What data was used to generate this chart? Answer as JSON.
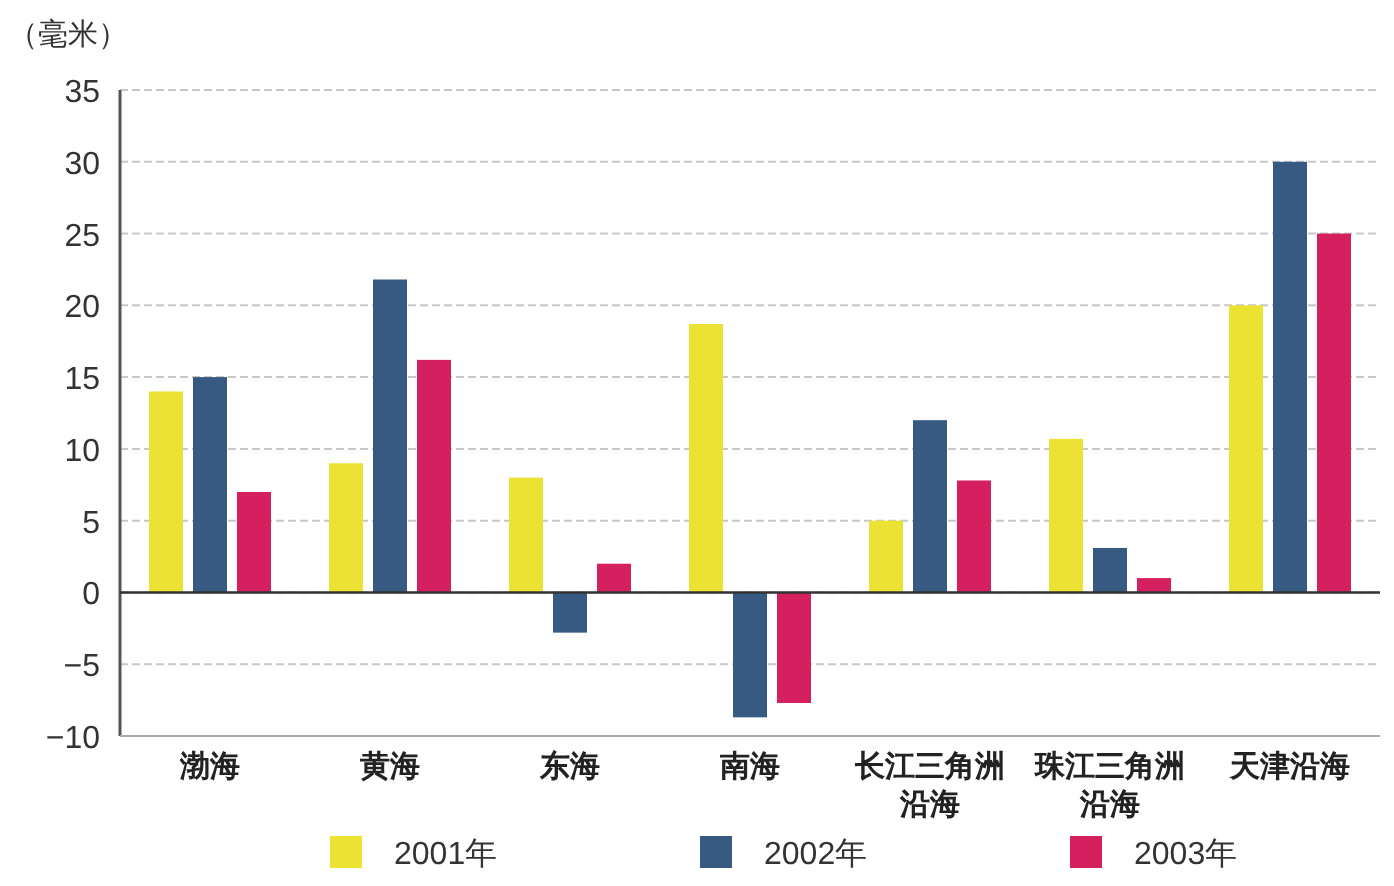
{
  "chart_data": {
    "type": "bar",
    "ylabel": "（毫米）",
    "categories": [
      "渤海",
      "黄海",
      "东海",
      "南海",
      "长江三角洲沿海",
      "珠江三角洲沿海",
      "天津沿海"
    ],
    "series": [
      {
        "name": "2001年",
        "color": "#ece234",
        "values": [
          14,
          9,
          8,
          18.7,
          5,
          10.7,
          20
        ]
      },
      {
        "name": "2002年",
        "color": "#375a83",
        "values": [
          15,
          21.8,
          -2.8,
          -8.7,
          12,
          3.1,
          30
        ]
      },
      {
        "name": "2003年",
        "color": "#d4205f",
        "values": [
          7,
          16.2,
          2,
          -7.7,
          7.8,
          1,
          25
        ]
      }
    ],
    "ylim": [
      -10,
      35
    ],
    "yticks": [
      -10,
      -5,
      0,
      5,
      10,
      15,
      20,
      25,
      30,
      35
    ],
    "grid": "y",
    "legend": "bottom"
  }
}
